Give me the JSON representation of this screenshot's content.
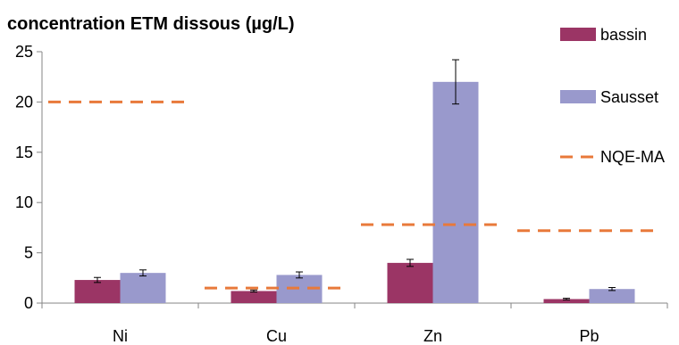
{
  "chart_data": {
    "type": "bar",
    "title": "concentration  ETM dissous (µg/L)",
    "xlabel": "",
    "ylabel": "",
    "categories": [
      "Ni",
      "Cu",
      "Zn",
      "Pb"
    ],
    "ylim": [
      0,
      25
    ],
    "yticks": [
      0,
      5,
      10,
      15,
      20,
      25
    ],
    "grid": false,
    "legend_position": "right",
    "series": [
      {
        "name": "bassin",
        "color": "#9b3565",
        "values": [
          2.3,
          1.2,
          4.0,
          0.4
        ],
        "errors": [
          0.25,
          0.1,
          0.35,
          0.08
        ]
      },
      {
        "name": "Sausset",
        "color": "#9999cc",
        "values": [
          3.0,
          2.8,
          22.0,
          1.4
        ],
        "errors": [
          0.3,
          0.3,
          2.2,
          0.15
        ]
      }
    ],
    "reference_line": {
      "name": "NQE-MA",
      "color": "#e8793a",
      "values": [
        20,
        1.5,
        7.8,
        7.2
      ]
    }
  }
}
